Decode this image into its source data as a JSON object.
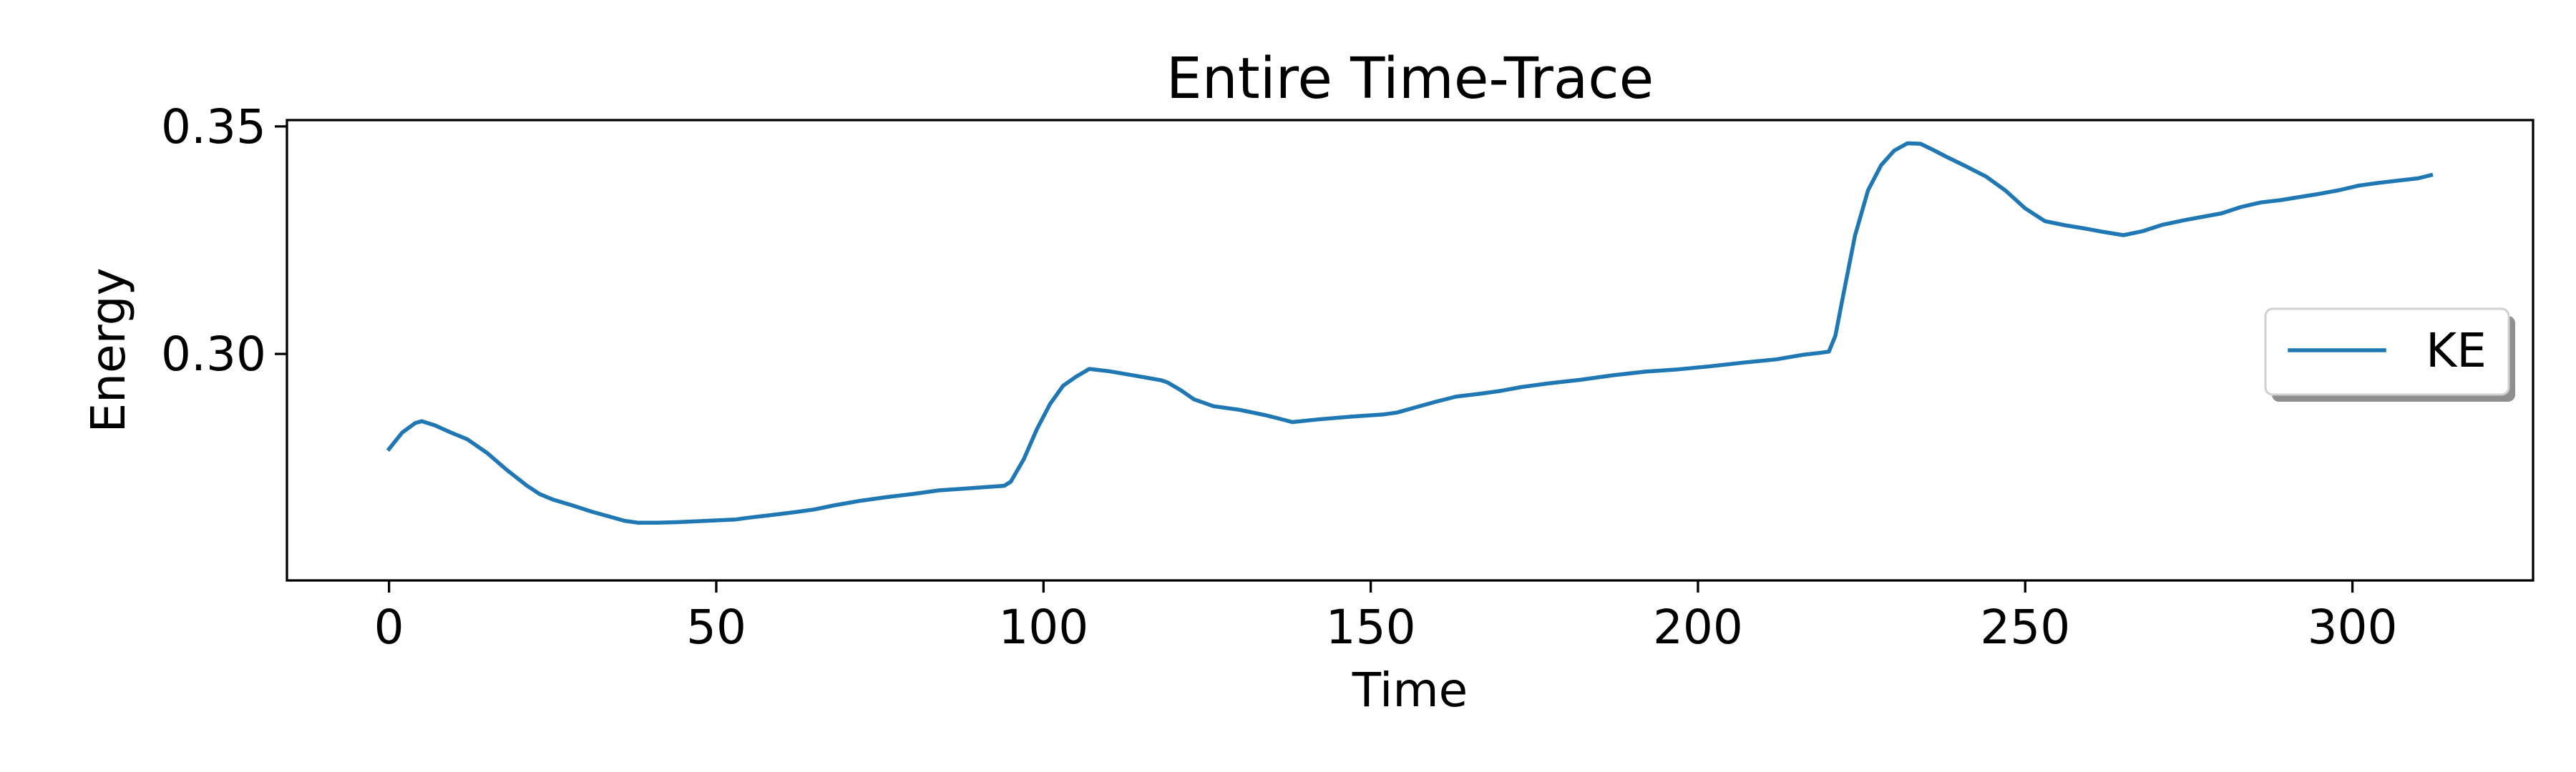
{
  "chart_data": {
    "type": "line",
    "title": "Entire Time-Trace",
    "xlabel": "Time",
    "ylabel": "Energy",
    "xlim": [
      -15.6,
      327.6
    ],
    "ylim": [
      0.2502,
      0.3514
    ],
    "xticks": [
      0,
      50,
      100,
      150,
      200,
      250,
      300
    ],
    "xtick_labels": [
      "0",
      "50",
      "100",
      "150",
      "200",
      "250",
      "300"
    ],
    "yticks": [
      0.3,
      0.35
    ],
    "ytick_labels": [
      "0.30",
      "0.35"
    ],
    "grid": false,
    "legend": {
      "position": "center-right",
      "entries": [
        "KE"
      ]
    },
    "series": [
      {
        "name": "KE",
        "color": "#1f77b4",
        "x": [
          0,
          2,
          4,
          5,
          7,
          9,
          12,
          15,
          18,
          21,
          23,
          25,
          28,
          31,
          34,
          36,
          38,
          41,
          44,
          47,
          50,
          53,
          55,
          58,
          62,
          65,
          68,
          72,
          76,
          80,
          84,
          88,
          92,
          94,
          95,
          97,
          99,
          101,
          103,
          105,
          107,
          110,
          114,
          118,
          119,
          121,
          123,
          126,
          130,
          134,
          137,
          138,
          142,
          147,
          152,
          154,
          157,
          160,
          163,
          167,
          170,
          173,
          177,
          182,
          187,
          192,
          197,
          202,
          207,
          212,
          216,
          219,
          220,
          221,
          222,
          224,
          226,
          228,
          230,
          232,
          234,
          236,
          238,
          241,
          244,
          247,
          250,
          253,
          256,
          259,
          262,
          265,
          268,
          271,
          274,
          277,
          280,
          283,
          286,
          289,
          292,
          295,
          298,
          301,
          304,
          307,
          310,
          312
        ],
        "values": [
          0.2791,
          0.2827,
          0.2848,
          0.2852,
          0.2843,
          0.283,
          0.2812,
          0.2782,
          0.2745,
          0.2711,
          0.2692,
          0.268,
          0.2667,
          0.2653,
          0.2641,
          0.2633,
          0.2629,
          0.2629,
          0.263,
          0.2632,
          0.2634,
          0.2636,
          0.264,
          0.2645,
          0.2652,
          0.2658,
          0.2667,
          0.2677,
          0.2685,
          0.2692,
          0.27,
          0.2704,
          0.2708,
          0.271,
          0.2719,
          0.2769,
          0.2835,
          0.289,
          0.293,
          0.295,
          0.2967,
          0.2962,
          0.2952,
          0.2942,
          0.2937,
          0.292,
          0.29,
          0.2885,
          0.2877,
          0.2865,
          0.2854,
          0.285,
          0.2856,
          0.2862,
          0.2867,
          0.2871,
          0.2883,
          0.2895,
          0.2906,
          0.2913,
          0.2919,
          0.2927,
          0.2935,
          0.2943,
          0.2953,
          0.2961,
          0.2966,
          0.2973,
          0.2981,
          0.2988,
          0.2998,
          0.3003,
          0.3005,
          0.304,
          0.3115,
          0.326,
          0.336,
          0.3415,
          0.3447,
          0.3463,
          0.3462,
          0.3448,
          0.3433,
          0.3412,
          0.339,
          0.3359,
          0.332,
          0.3292,
          0.3283,
          0.3276,
          0.3268,
          0.3261,
          0.327,
          0.3284,
          0.3293,
          0.3301,
          0.3309,
          0.3323,
          0.3333,
          0.3338,
          0.3345,
          0.3352,
          0.336,
          0.337,
          0.3376,
          0.3381,
          0.3386,
          0.3393
        ]
      }
    ]
  }
}
